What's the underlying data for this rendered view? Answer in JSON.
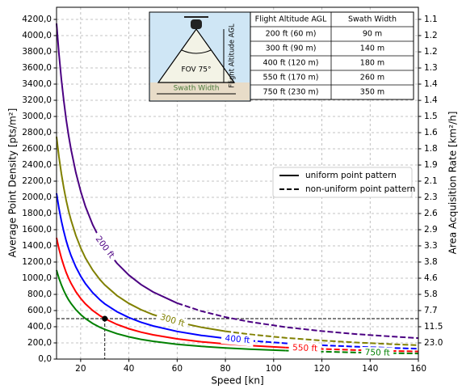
{
  "chart_data": {
    "type": "line",
    "xlabel": "Speed [kn]",
    "ylabel": "Average Point Density [pts/m²]",
    "y2label": "Area Acquisition Rate [km²/h]",
    "xlim": [
      10,
      160
    ],
    "ylim": [
      0,
      4350
    ],
    "xticks": [
      20,
      40,
      60,
      80,
      100,
      120,
      140,
      160
    ],
    "yticks": [
      {
        "value": 0,
        "label": "0,0"
      },
      {
        "value": 200,
        "label": "200,0"
      },
      {
        "value": 400,
        "label": "400,0"
      },
      {
        "value": 600,
        "label": "600,0"
      },
      {
        "value": 800,
        "label": "800,0"
      },
      {
        "value": 1000,
        "label": "1000,0"
      },
      {
        "value": 1200,
        "label": "1200,0"
      },
      {
        "value": 1400,
        "label": "1400,0"
      },
      {
        "value": 1600,
        "label": "1600,0"
      },
      {
        "value": 1800,
        "label": "1800,0"
      },
      {
        "value": 2000,
        "label": "2000,0"
      },
      {
        "value": 2200,
        "label": "2200,0"
      },
      {
        "value": 2400,
        "label": "2400,0"
      },
      {
        "value": 2600,
        "label": "2600,0"
      },
      {
        "value": 2800,
        "label": "2800,0"
      },
      {
        "value": 3000,
        "label": "3000,0"
      },
      {
        "value": 3200,
        "label": "3200,0"
      },
      {
        "value": 3400,
        "label": "3400,0"
      },
      {
        "value": 3600,
        "label": "3600,0"
      },
      {
        "value": 3800,
        "label": "3800,0"
      },
      {
        "value": 4000,
        "label": "4000,0"
      },
      {
        "value": 4200,
        "label": "4200,0"
      }
    ],
    "y2_scale": "reciprocal",
    "y2_factor": 4600,
    "y2ticks": [
      {
        "value": 1.095,
        "label": "1.1"
      },
      {
        "value": 1.15,
        "label": "1.2"
      },
      {
        "value": 1.211,
        "label": "1.2"
      },
      {
        "value": 1.278,
        "label": "1.3"
      },
      {
        "value": 1.353,
        "label": "1.4"
      },
      {
        "value": 1.438,
        "label": "1.4"
      },
      {
        "value": 1.533,
        "label": "1.5"
      },
      {
        "value": 1.643,
        "label": "1.6"
      },
      {
        "value": 1.769,
        "label": "1.8"
      },
      {
        "value": 1.917,
        "label": "1.9"
      },
      {
        "value": 2.091,
        "label": "2.1"
      },
      2.3,
      {
        "value": 2.556,
        "label": "2.6"
      },
      {
        "value": 2.875,
        "label": "2.9"
      },
      {
        "value": 3.286,
        "label": "3.3"
      },
      {
        "value": 3.833,
        "label": "3.8"
      },
      4.6,
      {
        "value": 5.75,
        "label": "5.8"
      },
      {
        "value": 7.667,
        "label": "7.7"
      },
      11.5,
      {
        "value": 23,
        "label": "23.0"
      }
    ],
    "grid": true,
    "x": [
      10,
      11,
      12,
      13,
      14,
      15,
      16,
      18,
      20,
      22,
      25,
      28,
      30,
      35,
      40,
      45,
      50,
      60,
      70,
      80,
      90,
      105,
      120,
      135,
      150,
      160
    ],
    "series": [
      {
        "name": "200 ft",
        "color": "#4b0082",
        "values": [
          4150,
          3773,
          3458,
          3192,
          2964,
          2767,
          2594,
          2306,
          2075,
          1886,
          1660,
          1482,
          1383,
          1186,
          1038,
          922,
          830,
          692,
          null,
          null,
          null,
          null,
          null,
          null,
          null,
          null
        ],
        "nonuniform_values": [
          null,
          null,
          null,
          null,
          null,
          null,
          null,
          null,
          null,
          null,
          null,
          null,
          null,
          null,
          null,
          null,
          null,
          692,
          593,
          519,
          461,
          395,
          346,
          307,
          277,
          259
        ]
      },
      {
        "name": "300 ft",
        "color": "#808000",
        "values": [
          2750,
          2500,
          2292,
          2115,
          1964,
          1833,
          1719,
          1528,
          1375,
          1250,
          1100,
          982,
          917,
          786,
          688,
          611,
          550,
          458,
          393,
          344,
          null,
          null,
          null,
          null,
          null,
          null
        ],
        "nonuniform_values": [
          null,
          null,
          null,
          null,
          null,
          null,
          null,
          null,
          null,
          null,
          null,
          null,
          null,
          null,
          null,
          null,
          null,
          null,
          null,
          344,
          306,
          262,
          229,
          204,
          183,
          172
        ]
      },
      {
        "name": "400 ft",
        "color": "#0000ff",
        "values": [
          2050,
          1864,
          1708,
          1577,
          1464,
          1367,
          1281,
          1139,
          1025,
          932,
          820,
          732,
          683,
          586,
          513,
          456,
          410,
          342,
          293,
          256,
          null,
          null,
          null,
          null,
          null,
          null
        ],
        "nonuniform_values": [
          null,
          null,
          null,
          null,
          null,
          null,
          null,
          null,
          null,
          null,
          null,
          null,
          null,
          null,
          null,
          null,
          null,
          null,
          null,
          256,
          228,
          195,
          171,
          152,
          137,
          128
        ]
      },
      {
        "name": "550 ft",
        "color": "#ff0000",
        "values": [
          1500,
          1364,
          1250,
          1154,
          1071,
          1000,
          938,
          833,
          750,
          682,
          600,
          536,
          500,
          429,
          375,
          333,
          300,
          250,
          214,
          188,
          167,
          143,
          null,
          null,
          null,
          null
        ],
        "nonuniform_values": [
          null,
          null,
          null,
          null,
          null,
          null,
          null,
          null,
          null,
          null,
          null,
          null,
          null,
          null,
          null,
          null,
          null,
          null,
          null,
          null,
          null,
          143,
          125,
          111,
          100,
          94
        ]
      },
      {
        "name": "750 ft",
        "color": "#008000",
        "values": [
          1100,
          1000,
          917,
          846,
          786,
          733,
          688,
          611,
          550,
          500,
          440,
          393,
          367,
          314,
          275,
          244,
          220,
          183,
          157,
          138,
          122,
          105,
          null,
          null,
          null,
          null
        ],
        "nonuniform_values": [
          null,
          null,
          null,
          null,
          null,
          null,
          null,
          null,
          null,
          null,
          null,
          null,
          null,
          null,
          null,
          null,
          null,
          null,
          null,
          null,
          null,
          105,
          92,
          81,
          73,
          69
        ]
      }
    ],
    "marker": {
      "x": 30,
      "y": 500
    },
    "legend": {
      "position": "center right",
      "entries": [
        {
          "label": "uniform point pattern",
          "style": "solid"
        },
        {
          "label": "non-uniform point pattern",
          "style": "dashed"
        }
      ]
    },
    "inset": {
      "diagram": {
        "fov": "FOV 75°",
        "altitude": "Flight Altitude AGL",
        "swath": "Swath Width"
      },
      "table": {
        "header": [
          "Flight Altitude AGL",
          "Swath Width"
        ],
        "rows": [
          [
            "200 ft (60 m)",
            "90 m"
          ],
          [
            "300 ft (90 m)",
            "140 m"
          ],
          [
            "400 ft (120 m)",
            "180 m"
          ],
          [
            "550 ft (170 m)",
            "260 m"
          ],
          [
            "750 ft (230 m)",
            "350 m"
          ]
        ]
      }
    }
  }
}
